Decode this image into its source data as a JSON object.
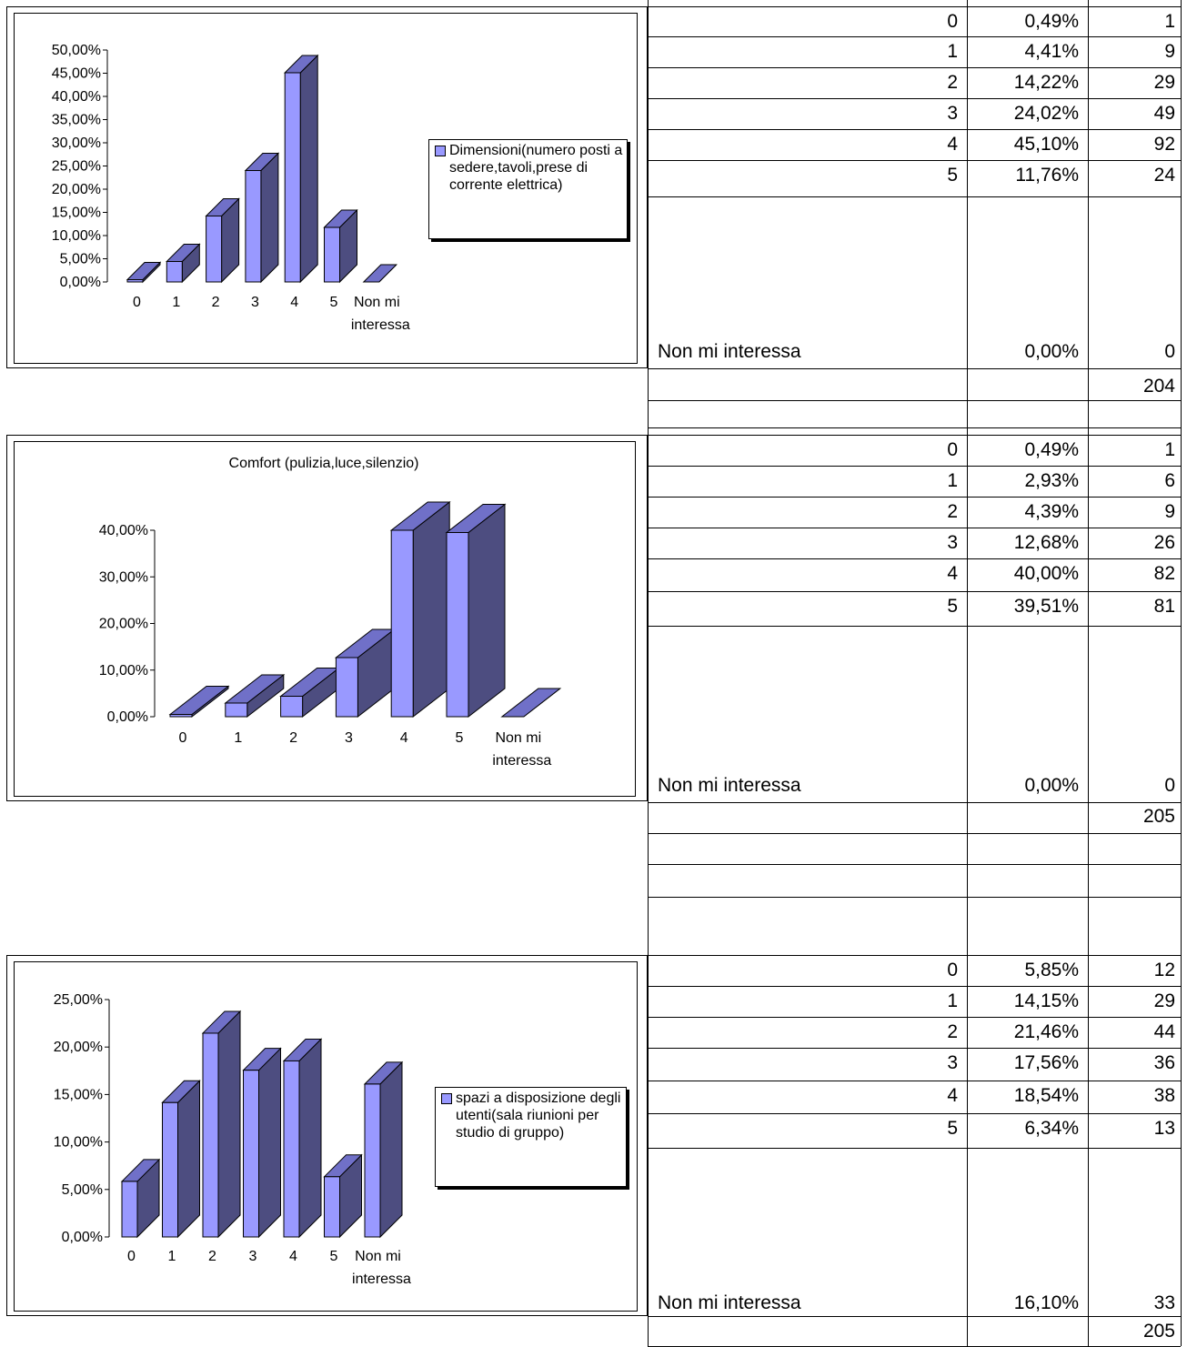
{
  "chart_data": [
    {
      "type": "bar",
      "title": "",
      "categories": [
        "0",
        "1",
        "2",
        "3",
        "4",
        "5",
        "Non mi interessa"
      ],
      "series": [
        {
          "name": "Dimensioni(numero posti a sedere,tavoli,prese di corrente elettrica)",
          "values": [
            0.49,
            4.41,
            14.22,
            24.02,
            45.1,
            11.76,
            0.0
          ]
        }
      ],
      "yticks": [
        "0,00%",
        "5,00%",
        "10,00%",
        "15,00%",
        "20,00%",
        "25,00%",
        "30,00%",
        "35,00%",
        "40,00%",
        "45,00%",
        "50,00%"
      ],
      "ylim": [
        0,
        50
      ],
      "legend": "right",
      "bar_color": "#9999ff"
    },
    {
      "type": "bar",
      "title": "Comfort (pulizia,luce,silenzio)",
      "categories": [
        "0",
        "1",
        "2",
        "3",
        "4",
        "5",
        "Non mi interessa"
      ],
      "series": [
        {
          "values": [
            0.49,
            2.93,
            4.39,
            12.68,
            40.0,
            39.51,
            0.0
          ]
        }
      ],
      "yticks": [
        "0,00%",
        "10,00%",
        "20,00%",
        "30,00%",
        "40,00%"
      ],
      "ylim": [
        0,
        40
      ],
      "legend": "none",
      "bar_color": "#9999ff"
    },
    {
      "type": "bar",
      "title": "",
      "categories": [
        "0",
        "1",
        "2",
        "3",
        "4",
        "5",
        "Non mi interessa"
      ],
      "series": [
        {
          "name": "spazi a disposizione degli utenti(sala riunioni per studio di gruppo)",
          "values": [
            5.85,
            14.15,
            21.46,
            17.56,
            18.54,
            6.34,
            16.1
          ]
        }
      ],
      "yticks": [
        "0,00%",
        "5,00%",
        "10,00%",
        "15,00%",
        "20,00%",
        "25,00%"
      ],
      "ylim": [
        0,
        25
      ],
      "legend": "right",
      "bar_color": "#9999ff"
    }
  ],
  "tables": [
    {
      "rows": [
        {
          "score": "0",
          "pct": "0,49%",
          "count": "1"
        },
        {
          "score": "1",
          "pct": "4,41%",
          "count": "9"
        },
        {
          "score": "2",
          "pct": "14,22%",
          "count": "29"
        },
        {
          "score": "3",
          "pct": "24,02%",
          "count": "49"
        },
        {
          "score": "4",
          "pct": "45,10%",
          "count": "92"
        },
        {
          "score": "5",
          "pct": "11,76%",
          "count": "24"
        }
      ],
      "last_row": {
        "label": "Non mi interessa",
        "pct": "0,00%",
        "count": "0"
      },
      "total": "204"
    },
    {
      "rows": [
        {
          "score": "0",
          "pct": "0,49%",
          "count": "1"
        },
        {
          "score": "1",
          "pct": "2,93%",
          "count": "6"
        },
        {
          "score": "2",
          "pct": "4,39%",
          "count": "9"
        },
        {
          "score": "3",
          "pct": "12,68%",
          "count": "26"
        },
        {
          "score": "4",
          "pct": "40,00%",
          "count": "82"
        },
        {
          "score": "5",
          "pct": "39,51%",
          "count": "81"
        }
      ],
      "last_row": {
        "label": "Non mi interessa",
        "pct": "0,00%",
        "count": "0"
      },
      "total": "205"
    },
    {
      "rows": [
        {
          "score": "0",
          "pct": "5,85%",
          "count": "12"
        },
        {
          "score": "1",
          "pct": "14,15%",
          "count": "29"
        },
        {
          "score": "2",
          "pct": "21,46%",
          "count": "44"
        },
        {
          "score": "3",
          "pct": "17,56%",
          "count": "36"
        },
        {
          "score": "4",
          "pct": "18,54%",
          "count": "38"
        },
        {
          "score": "5",
          "pct": "6,34%",
          "count": "13"
        }
      ],
      "last_row": {
        "label": "Non mi interessa",
        "pct": "16,10%",
        "count": "33"
      },
      "total": "205"
    }
  ]
}
